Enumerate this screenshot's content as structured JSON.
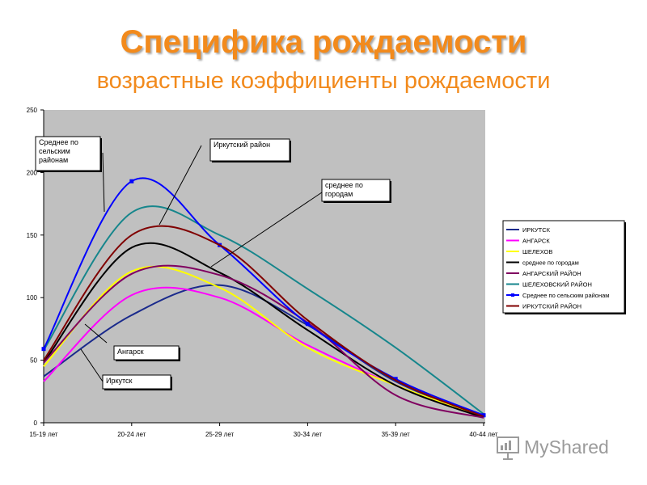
{
  "title": "Специфика рождаемости",
  "subtitle": "возрастные коэффициенты рождаемости",
  "watermark": "MyShared",
  "chart_data": {
    "type": "line",
    "categories": [
      "15-19 лет",
      "20-24 лет",
      "25-29 лет",
      "30-34 лет",
      "35-39 лет",
      "40-44 лет"
    ],
    "ylim": [
      0,
      250
    ],
    "yticks": [
      0,
      50,
      100,
      150,
      200,
      250
    ],
    "grid": false,
    "legend_position": "right",
    "series": [
      {
        "name": "ИРКУТСК",
        "color": "#1a2a8c",
        "values": [
          37,
          86,
          110,
          78,
          33,
          5
        ]
      },
      {
        "name": "АНГАРСК",
        "color": "#ff00ff",
        "values": [
          33,
          102,
          100,
          62,
          30,
          4
        ]
      },
      {
        "name": "ШЕЛЕХОВ",
        "color": "#ffff00",
        "values": [
          45,
          121,
          108,
          60,
          30,
          4
        ]
      },
      {
        "name": "среднее по городам",
        "color": "#000000",
        "values": [
          48,
          140,
          120,
          74,
          30,
          4
        ]
      },
      {
        "name": "АНГАРСКИЙ РАЙОН",
        "color": "#800060",
        "values": [
          48,
          119,
          118,
          80,
          22,
          4
        ]
      },
      {
        "name": "ШЕЛЕХОВСКИЙ РАЙОН",
        "color": "#16868c",
        "values": [
          58,
          168,
          150,
          107,
          60,
          7
        ]
      },
      {
        "name": "Среднее по сельским районам",
        "color": "#0000ff",
        "values": [
          59,
          193,
          142,
          79,
          35,
          6
        ],
        "markers": true
      },
      {
        "name": "ИРКУТСКИЙ РАЙОН",
        "color": "#800000",
        "values": [
          50,
          150,
          142,
          82,
          34,
          5
        ]
      }
    ],
    "annotations": [
      {
        "text": "Среднее по сельским районам"
      },
      {
        "text": "Иркутский район"
      },
      {
        "text": "среднее по городам"
      },
      {
        "text": "Ангарск"
      },
      {
        "text": "Иркутск"
      }
    ]
  }
}
